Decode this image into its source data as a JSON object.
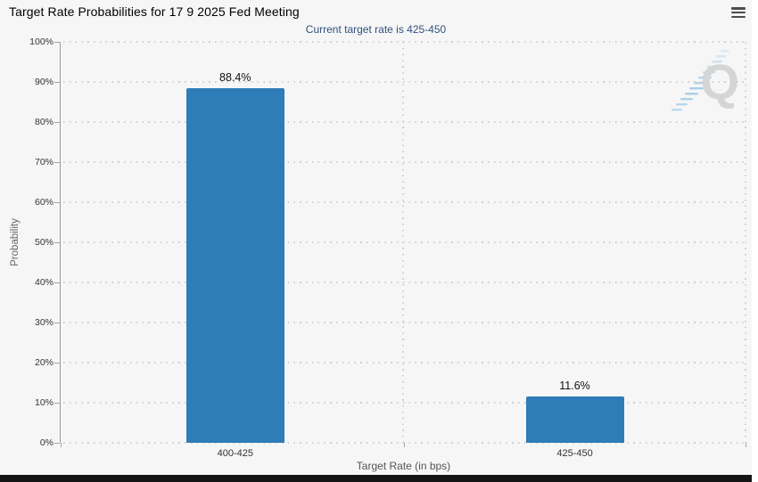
{
  "header": {
    "title": "Target Rate Probabilities for 17 9 2025 Fed Meeting"
  },
  "chart_data": {
    "type": "bar",
    "title": "Target Rate Probabilities for 17 9 2025 Fed Meeting",
    "subtitle": "Current target rate is 425-450",
    "categories": [
      "400-425",
      "425-450"
    ],
    "values": [
      88.4,
      11.6
    ],
    "value_labels": [
      "88.4%",
      "11.6%"
    ],
    "xlabel": "Target Rate (in bps)",
    "ylabel": "Probability",
    "ylim": [
      0,
      100
    ],
    "ytick_step": 10,
    "ytick_labels": [
      "0%",
      "10%",
      "20%",
      "30%",
      "40%",
      "50%",
      "60%",
      "70%",
      "80%",
      "90%",
      "100%"
    ],
    "grid": "dotted",
    "legend": "none",
    "bar_color": "#2e7cb8"
  },
  "watermark": {
    "letter": "Q"
  },
  "icons": {
    "menu": "hamburger-menu-icon"
  },
  "colors": {
    "background": "#f6f6f6",
    "bar": "#2e7cb8",
    "subtitle_text": "#33517d",
    "axis": "#9b9b9b",
    "gridline": "#d0d0d0",
    "bottom_bar": "#141414"
  }
}
